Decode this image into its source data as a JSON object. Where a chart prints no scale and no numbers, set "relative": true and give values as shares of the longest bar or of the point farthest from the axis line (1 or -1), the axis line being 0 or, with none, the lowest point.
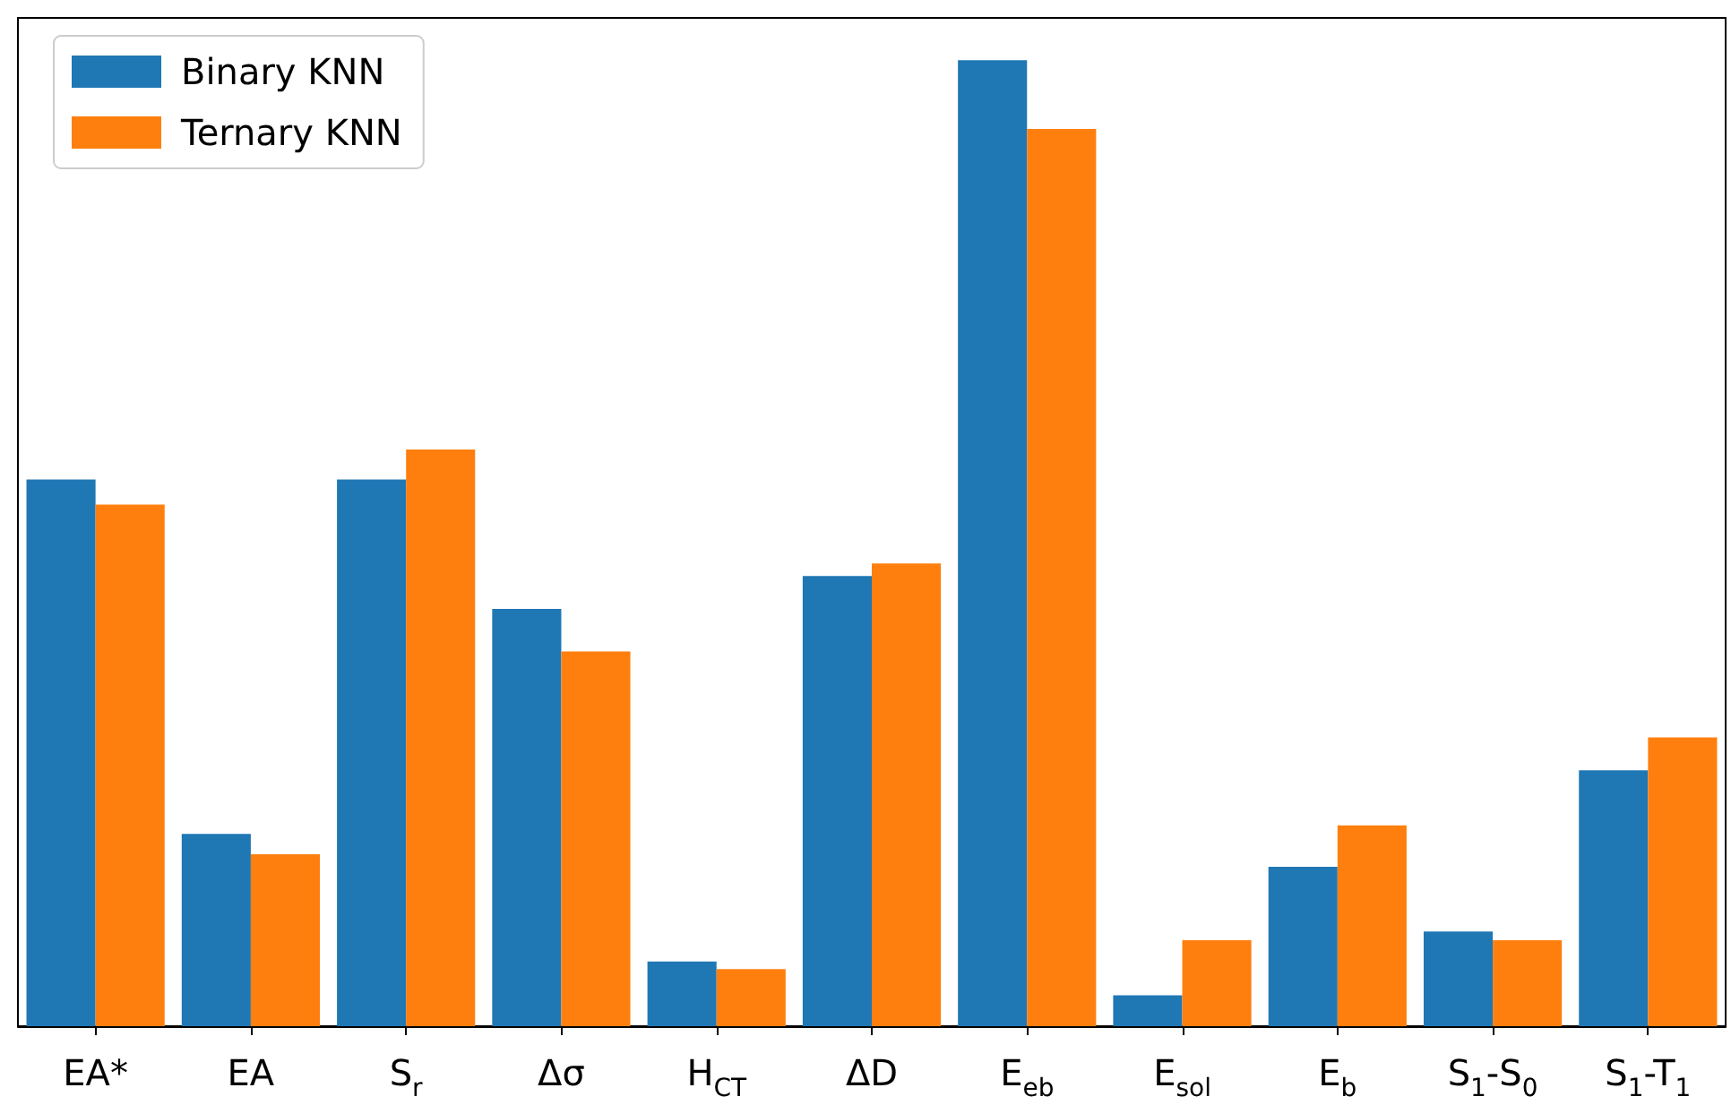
{
  "chart_data": {
    "type": "bar",
    "relative": true,
    "categories": [
      "EA*",
      "EA",
      "S$_{r}$",
      "Δσ",
      "H$_{CT}$",
      "ΔD",
      "E$_{eb}$",
      "E$_{sol}$",
      "E$_{b}$",
      "S$_{1}$-S$_{0}$",
      "S$_{1}$-T$_{1}$"
    ],
    "series": [
      {
        "name": "Binary KNN",
        "color": "#1f77b4",
        "values": [
          0.566,
          0.199,
          0.566,
          0.432,
          0.067,
          0.466,
          1,
          0.032,
          0.165,
          0.098,
          0.265
        ]
      },
      {
        "name": "Ternary KNN",
        "color": "#ff7f0e",
        "values": [
          0.54,
          0.178,
          0.597,
          0.388,
          0.059,
          0.479,
          0.929,
          0.089,
          0.208,
          0.089,
          0.299
        ]
      }
    ],
    "legend": "top left"
  }
}
